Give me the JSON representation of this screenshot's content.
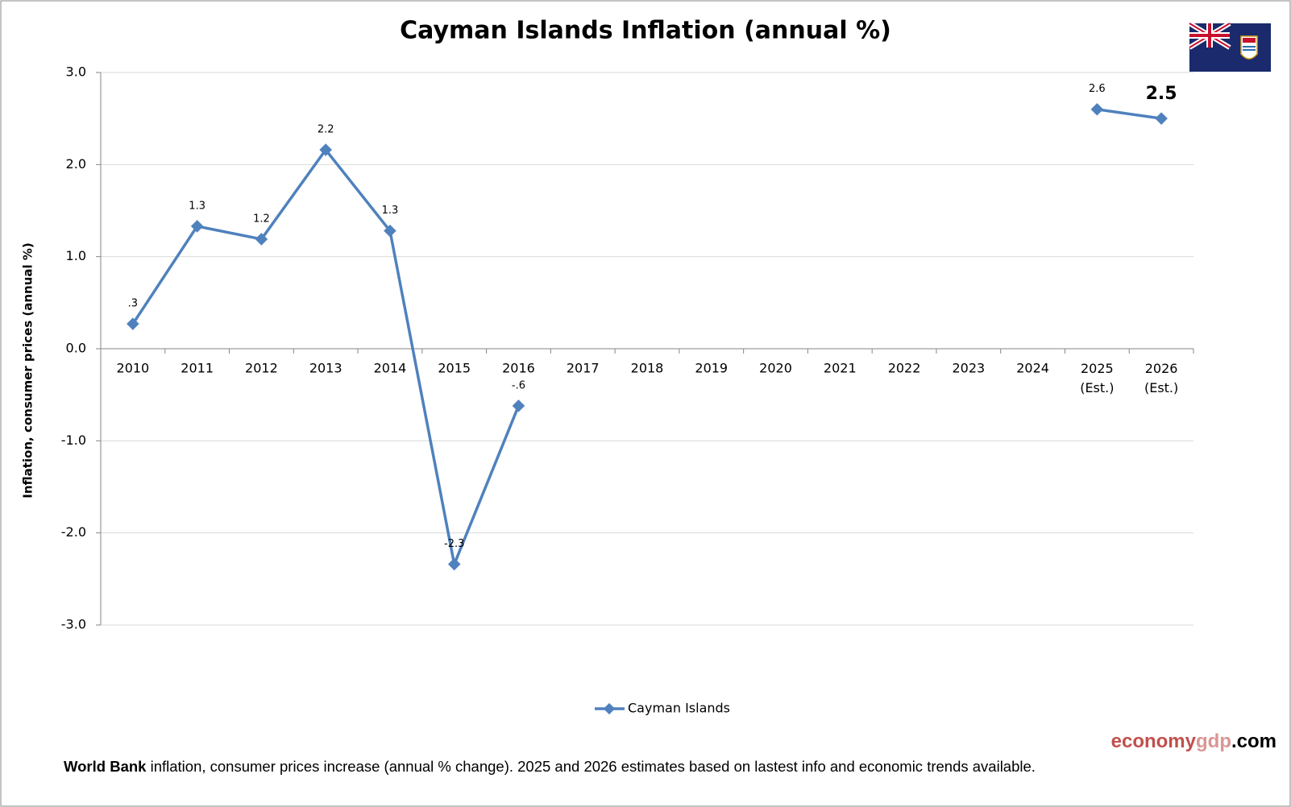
{
  "chart_data": {
    "type": "line",
    "title": "Cayman Islands Inflation (annual %)",
    "y_label": "Inflation, consumer prices (annual %)",
    "categories": [
      "2010",
      "2011",
      "2012",
      "2013",
      "2014",
      "2015",
      "2016",
      "2017",
      "2018",
      "2019",
      "2020",
      "2021",
      "2022",
      "2023",
      "2024",
      "2025 (Est.)",
      "2026 (Est.)"
    ],
    "series": [
      {
        "name": "Cayman Islands",
        "color": "#4f81bd",
        "values": [
          0.27,
          1.33,
          1.19,
          2.16,
          1.28,
          -2.34,
          -0.62,
          null,
          null,
          null,
          null,
          null,
          null,
          null,
          null,
          2.6,
          2.5
        ],
        "value_labels": [
          ".3",
          "1.3",
          "1.2",
          "2.2",
          "1.3",
          "-2.3",
          "-.6",
          null,
          null,
          null,
          null,
          null,
          null,
          null,
          null,
          "2.6",
          "2.5"
        ]
      }
    ],
    "ylim": [
      -3,
      3
    ],
    "yticks": [
      {
        "value": -3,
        "label": "-3.0"
      },
      {
        "value": -2,
        "label": "-2.0"
      },
      {
        "value": -1,
        "label": "-1.0"
      },
      {
        "value": 0,
        "label": "0.0"
      },
      {
        "value": 1,
        "label": "1.0"
      },
      {
        "value": 2,
        "label": "2.0"
      },
      {
        "value": 3,
        "label": "3.0"
      }
    ],
    "grid": true,
    "legend": "bottom",
    "source_bold": "World Bank",
    "source_text": "inflation, consumer prices increase (annual % change).  2025 and 2026 estimates based on lastest info and economic trends available.",
    "watermark": [
      "economy",
      "gdp",
      ".com"
    ]
  }
}
